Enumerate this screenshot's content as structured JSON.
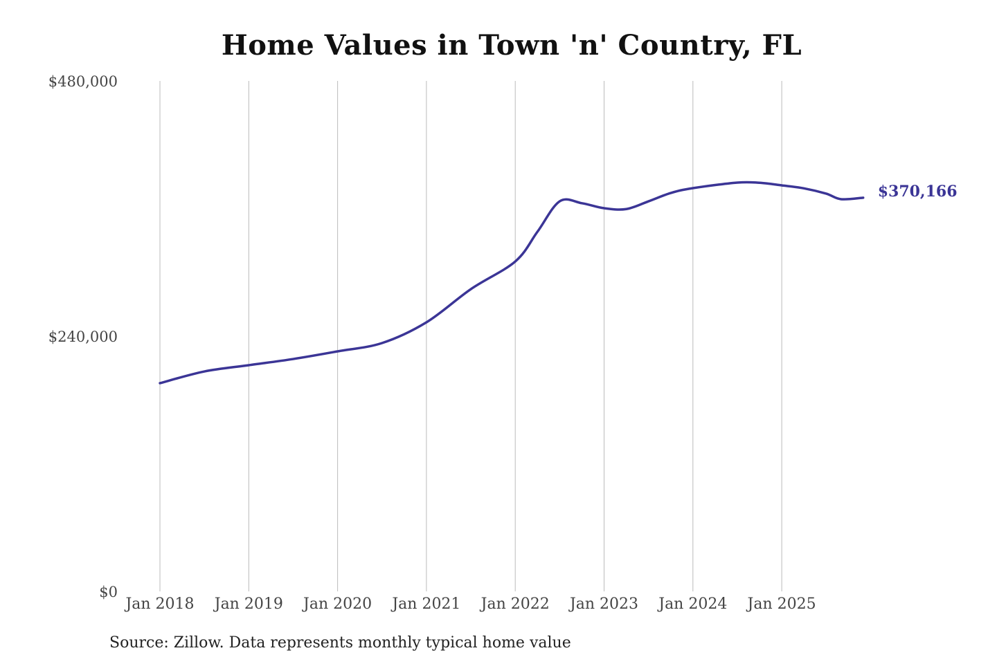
{
  "chart_data": {
    "type": "line",
    "title": "Home Values in Town 'n' Country, FL",
    "xlabel": "",
    "ylabel": "",
    "ylim": [
      0,
      480000
    ],
    "y_ticks": [
      0,
      240000,
      480000
    ],
    "y_tick_labels": [
      "$0",
      "$240,000",
      "$480,000"
    ],
    "x_tick_labels": [
      "Jan 2018",
      "Jan 2019",
      "Jan 2020",
      "Jan 2021",
      "Jan 2022",
      "Jan 2023",
      "Jan 2024",
      "Jan 2025"
    ],
    "grid": "vertical",
    "series": [
      {
        "name": "Typical home value",
        "color": "#3b3596",
        "points": [
          [
            "2018-01",
            195800
          ],
          [
            "2018-07",
            206800
          ],
          [
            "2019-01",
            212700
          ],
          [
            "2019-07",
            218500
          ],
          [
            "2020-01",
            225700
          ],
          [
            "2020-07",
            233500
          ],
          [
            "2021-01",
            253000
          ],
          [
            "2021-07",
            284200
          ],
          [
            "2022-01",
            310200
          ],
          [
            "2022-04",
            338200
          ],
          [
            "2022-07",
            366800
          ],
          [
            "2022-10",
            365000
          ],
          [
            "2023-01",
            360300
          ],
          [
            "2023-04",
            359500
          ],
          [
            "2023-07",
            366800
          ],
          [
            "2023-10",
            374600
          ],
          [
            "2024-01",
            379200
          ],
          [
            "2024-07",
            384400
          ],
          [
            "2024-10",
            384200
          ],
          [
            "2025-01",
            381800
          ],
          [
            "2025-04",
            379000
          ],
          [
            "2025-07",
            374000
          ],
          [
            "2025-09",
            368800
          ],
          [
            "2025-12",
            370166
          ]
        ]
      }
    ],
    "end_label": "$370,166",
    "source": "Source: Zillow. Data represents monthly typical home value"
  }
}
